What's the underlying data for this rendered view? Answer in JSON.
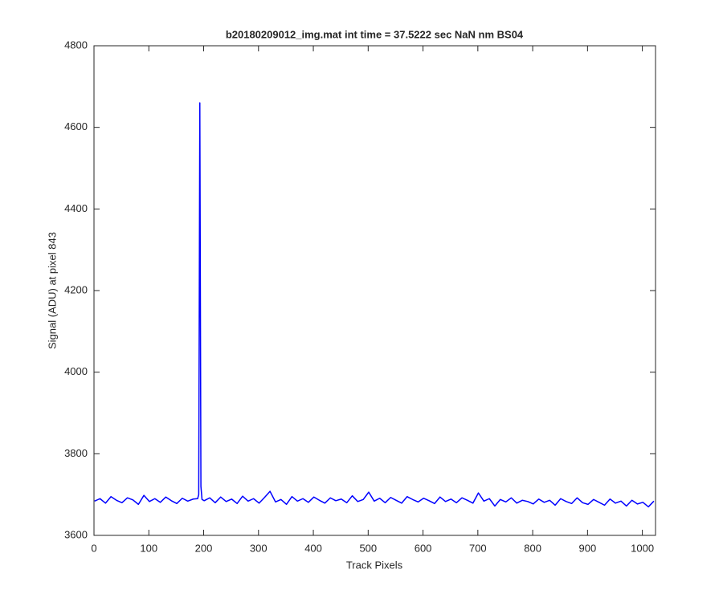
{
  "chart_data": {
    "type": "line",
    "title": "b20180209012_img.mat int time = 37.5222 sec  NaN nm BS04",
    "x_label": "Track Pixels",
    "y_label": "Signal (ADU) at pixel 843",
    "x": [
      1,
      11,
      21,
      31,
      41,
      51,
      61,
      71,
      81,
      91,
      101,
      111,
      121,
      131,
      141,
      151,
      161,
      171,
      181,
      189,
      191,
      193,
      195,
      197,
      201,
      211,
      221,
      231,
      241,
      251,
      261,
      271,
      281,
      291,
      301,
      311,
      321,
      331,
      341,
      351,
      361,
      371,
      381,
      391,
      401,
      411,
      421,
      431,
      441,
      451,
      461,
      471,
      481,
      491,
      501,
      511,
      521,
      531,
      541,
      551,
      561,
      571,
      581,
      591,
      601,
      611,
      621,
      631,
      641,
      651,
      661,
      671,
      681,
      691,
      701,
      711,
      721,
      731,
      741,
      751,
      761,
      771,
      781,
      791,
      801,
      811,
      821,
      831,
      841,
      851,
      861,
      871,
      881,
      891,
      901,
      911,
      921,
      931,
      941,
      951,
      961,
      971,
      981,
      991,
      1001,
      1011,
      1021
    ],
    "series": [
      {
        "name": "signal",
        "color": "#0000ff",
        "values": [
          3684,
          3690,
          3679,
          3695,
          3686,
          3680,
          3692,
          3687,
          3676,
          3698,
          3683,
          3690,
          3681,
          3694,
          3685,
          3678,
          3691,
          3684,
          3689,
          3690,
          3700,
          4660,
          3720,
          3688,
          3685,
          3692,
          3680,
          3694,
          3683,
          3689,
          3678,
          3696,
          3684,
          3690,
          3679,
          3693,
          3708,
          3682,
          3688,
          3676,
          3695,
          3684,
          3690,
          3681,
          3694,
          3686,
          3679,
          3692,
          3685,
          3689,
          3680,
          3697,
          3683,
          3688,
          3706,
          3684,
          3691,
          3680,
          3693,
          3686,
          3679,
          3695,
          3688,
          3682,
          3691,
          3685,
          3678,
          3694,
          3683,
          3689,
          3680,
          3692,
          3686,
          3679,
          3704,
          3684,
          3690,
          3672,
          3688,
          3682,
          3692,
          3679,
          3686,
          3683,
          3677,
          3689,
          3681,
          3686,
          3674,
          3690,
          3683,
          3678,
          3692,
          3680,
          3676,
          3688,
          3681,
          3674,
          3689,
          3679,
          3684,
          3672,
          3686,
          3677,
          3681,
          3670,
          3684
        ]
      }
    ],
    "xlim": [
      0,
      1024
    ],
    "ylim": [
      3600,
      4800
    ],
    "xticks": [
      0,
      100,
      200,
      300,
      400,
      500,
      600,
      700,
      800,
      900,
      1000
    ],
    "yticks": [
      3600,
      3800,
      4000,
      4200,
      4400,
      4600,
      4800
    ]
  }
}
